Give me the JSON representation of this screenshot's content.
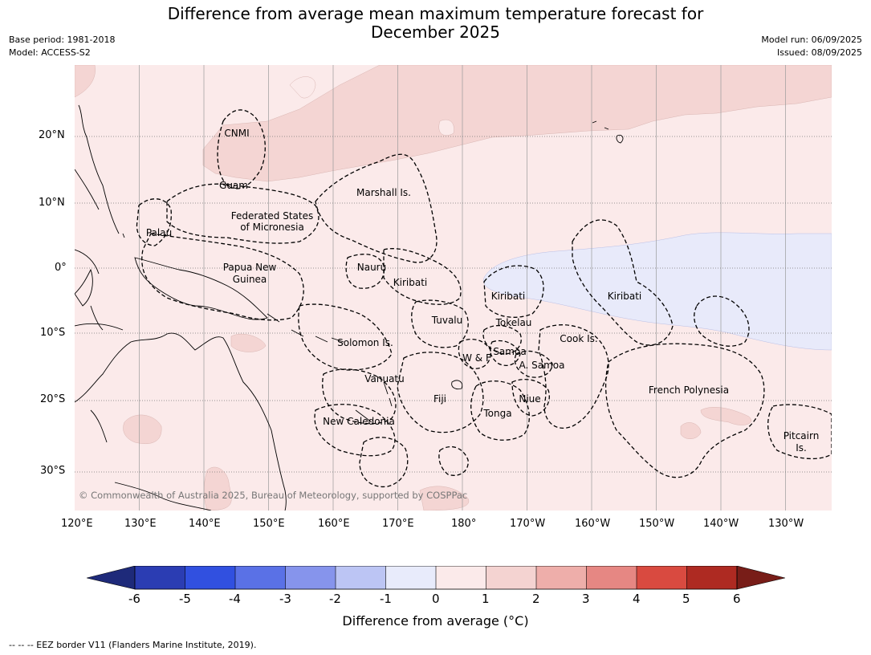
{
  "title": {
    "line1": "Difference from average mean maximum temperature forecast for",
    "line2": "December 2025"
  },
  "meta": {
    "base_period": "Base period: 1981-2018",
    "model": "Model: ACCESS-S2",
    "model_run": "Model run: 06/09/2025",
    "issued": "Issued: 08/09/2025"
  },
  "map": {
    "lon_ticks": [
      "120°E",
      "130°E",
      "140°E",
      "150°E",
      "160°E",
      "170°E",
      "180°",
      "170°W",
      "160°W",
      "150°W",
      "140°W",
      "130°W"
    ],
    "lat_ticks": [
      "20°N",
      "10°N",
      "0°",
      "10°S",
      "20°S",
      "30°S"
    ],
    "regions": [
      {
        "name": "CNMI"
      },
      {
        "name": "Guam"
      },
      {
        "name": "Marshall Is."
      },
      {
        "name": "Federated States"
      },
      {
        "name": "of Micronesia"
      },
      {
        "name": "Palau"
      },
      {
        "name": "Papua New"
      },
      {
        "name": "Guinea"
      },
      {
        "name": "Nauru"
      },
      {
        "name": "Kiribati"
      },
      {
        "name": "Kiribati"
      },
      {
        "name": "Kiribati"
      },
      {
        "name": "Tuvalu"
      },
      {
        "name": "Tokelau"
      },
      {
        "name": "Cook Is."
      },
      {
        "name": "Solomon Is."
      },
      {
        "name": "Samoa"
      },
      {
        "name": "W & F"
      },
      {
        "name": "A. Samoa"
      },
      {
        "name": "Vanuatu"
      },
      {
        "name": "Fiji"
      },
      {
        "name": "Niue"
      },
      {
        "name": "French Polynesia"
      },
      {
        "name": "Tonga"
      },
      {
        "name": "New Caledonia"
      },
      {
        "name": "Pitcairn"
      },
      {
        "name": "Is."
      }
    ],
    "copyright": "© Commonwealth of Australia 2025, Bureau of Meteorology, supported by COSPPac"
  },
  "colorbar": {
    "labels": [
      "-6",
      "-5",
      "-4",
      "-3",
      "-2",
      "-1",
      "0",
      "1",
      "2",
      "3",
      "4",
      "5",
      "6"
    ],
    "colors": [
      "#2b3db3",
      "#3150e0",
      "#5a71e6",
      "#8694ec",
      "#bcc5f4",
      "#e8ebfb",
      "#fbeaea",
      "#f4d3d1",
      "#eeaeaa",
      "#e68783",
      "#d94a40",
      "#ae2a22"
    ],
    "under_color": "#1e2a7a",
    "over_color": "#781d18",
    "title": "Difference from average (°C)"
  },
  "footnote": "-- -- -- EEZ border V11 (Flanders Marine Institute, 2019).",
  "colors": {
    "base_shade": "#fbeaea",
    "warm_shade": "#f4d5d3",
    "cool_shade": "#e8eafa",
    "land_outline": "#000000",
    "grid": "#999999"
  }
}
